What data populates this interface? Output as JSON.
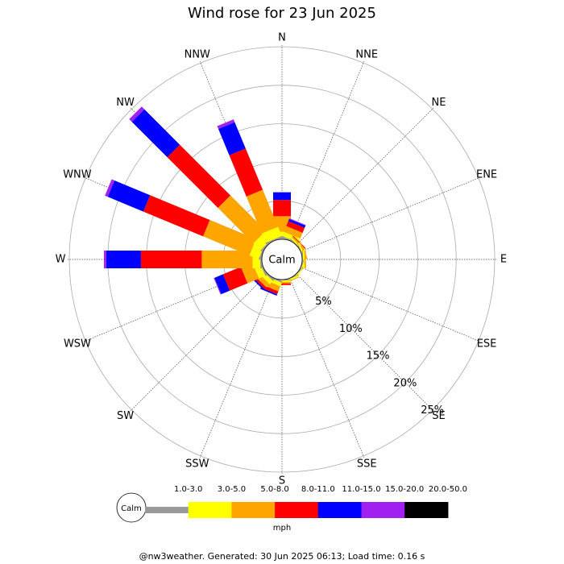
{
  "chart_data": {
    "type": "rose",
    "title": "Wind rose for 23 Jun 2025",
    "directions": [
      "N",
      "NNE",
      "NE",
      "ENE",
      "E",
      "ESE",
      "SE",
      "SSE",
      "S",
      "SSW",
      "SW",
      "WSW",
      "W",
      "WNW",
      "NW",
      "NNW"
    ],
    "series": [
      {
        "name": "1.0-3.0",
        "color": "#999999",
        "values": [
          0.2,
          0.2,
          0.1,
          0.1,
          0.1,
          0.1,
          0.1,
          0.1,
          0.1,
          0.2,
          0.2,
          0.2,
          0.2,
          0.2,
          0.2,
          0.2
        ]
      },
      {
        "name": "3.0-5.0",
        "color": "#ffff00",
        "values": [
          0.8,
          0.6,
          0.2,
          0.2,
          0.2,
          0.1,
          0.1,
          0.2,
          0.2,
          0.5,
          0.6,
          0.9,
          1.0,
          1.3,
          1.3,
          1.3
        ]
      },
      {
        "name": "5.0-8.0",
        "color": "#ffa500",
        "values": [
          2.0,
          0.8,
          0.2,
          0.2,
          0.2,
          0,
          0,
          0.1,
          0.2,
          0.7,
          0.6,
          1.6,
          6.6,
          6.5,
          6.5,
          5.2
        ]
      },
      {
        "name": "8.0-11.0",
        "color": "#ff0000",
        "values": [
          2.1,
          0.7,
          0.1,
          0,
          0,
          0,
          0,
          0,
          0.2,
          0.4,
          0.3,
          2.5,
          7.9,
          8.4,
          9.3,
          5.8
        ]
      },
      {
        "name": "11.0-15.0",
        "color": "#0000ff",
        "values": [
          1.0,
          0.3,
          0,
          0,
          0,
          0,
          0,
          0,
          0,
          0.2,
          0.2,
          1.2,
          4.5,
          5.0,
          6.5,
          3.7
        ]
      },
      {
        "name": "15.0-20.0",
        "color": "#a020f0",
        "values": [
          0,
          0.1,
          0,
          0,
          0,
          0,
          0,
          0,
          0,
          0,
          0,
          0.1,
          0.3,
          0.4,
          0.5,
          0.4
        ]
      },
      {
        "name": "20.0-50.0",
        "color": "#000000",
        "values": [
          0,
          0,
          0,
          0,
          0,
          0,
          0,
          0,
          0,
          0,
          0,
          0,
          0,
          0,
          0,
          0
        ]
      }
    ],
    "rlim": [
      0,
      25
    ],
    "rticks": [
      {
        "value": 5,
        "label": "5%"
      },
      {
        "value": 10,
        "label": "10%"
      },
      {
        "value": 15,
        "label": "15%"
      },
      {
        "value": 20,
        "label": "20%"
      },
      {
        "value": 25,
        "label": "25%"
      }
    ],
    "calm_label": "Calm",
    "units": "mph",
    "footer": "@nw3weather. Generated: 30 Jun 2025 06:13; Load time: 0.16 s"
  }
}
